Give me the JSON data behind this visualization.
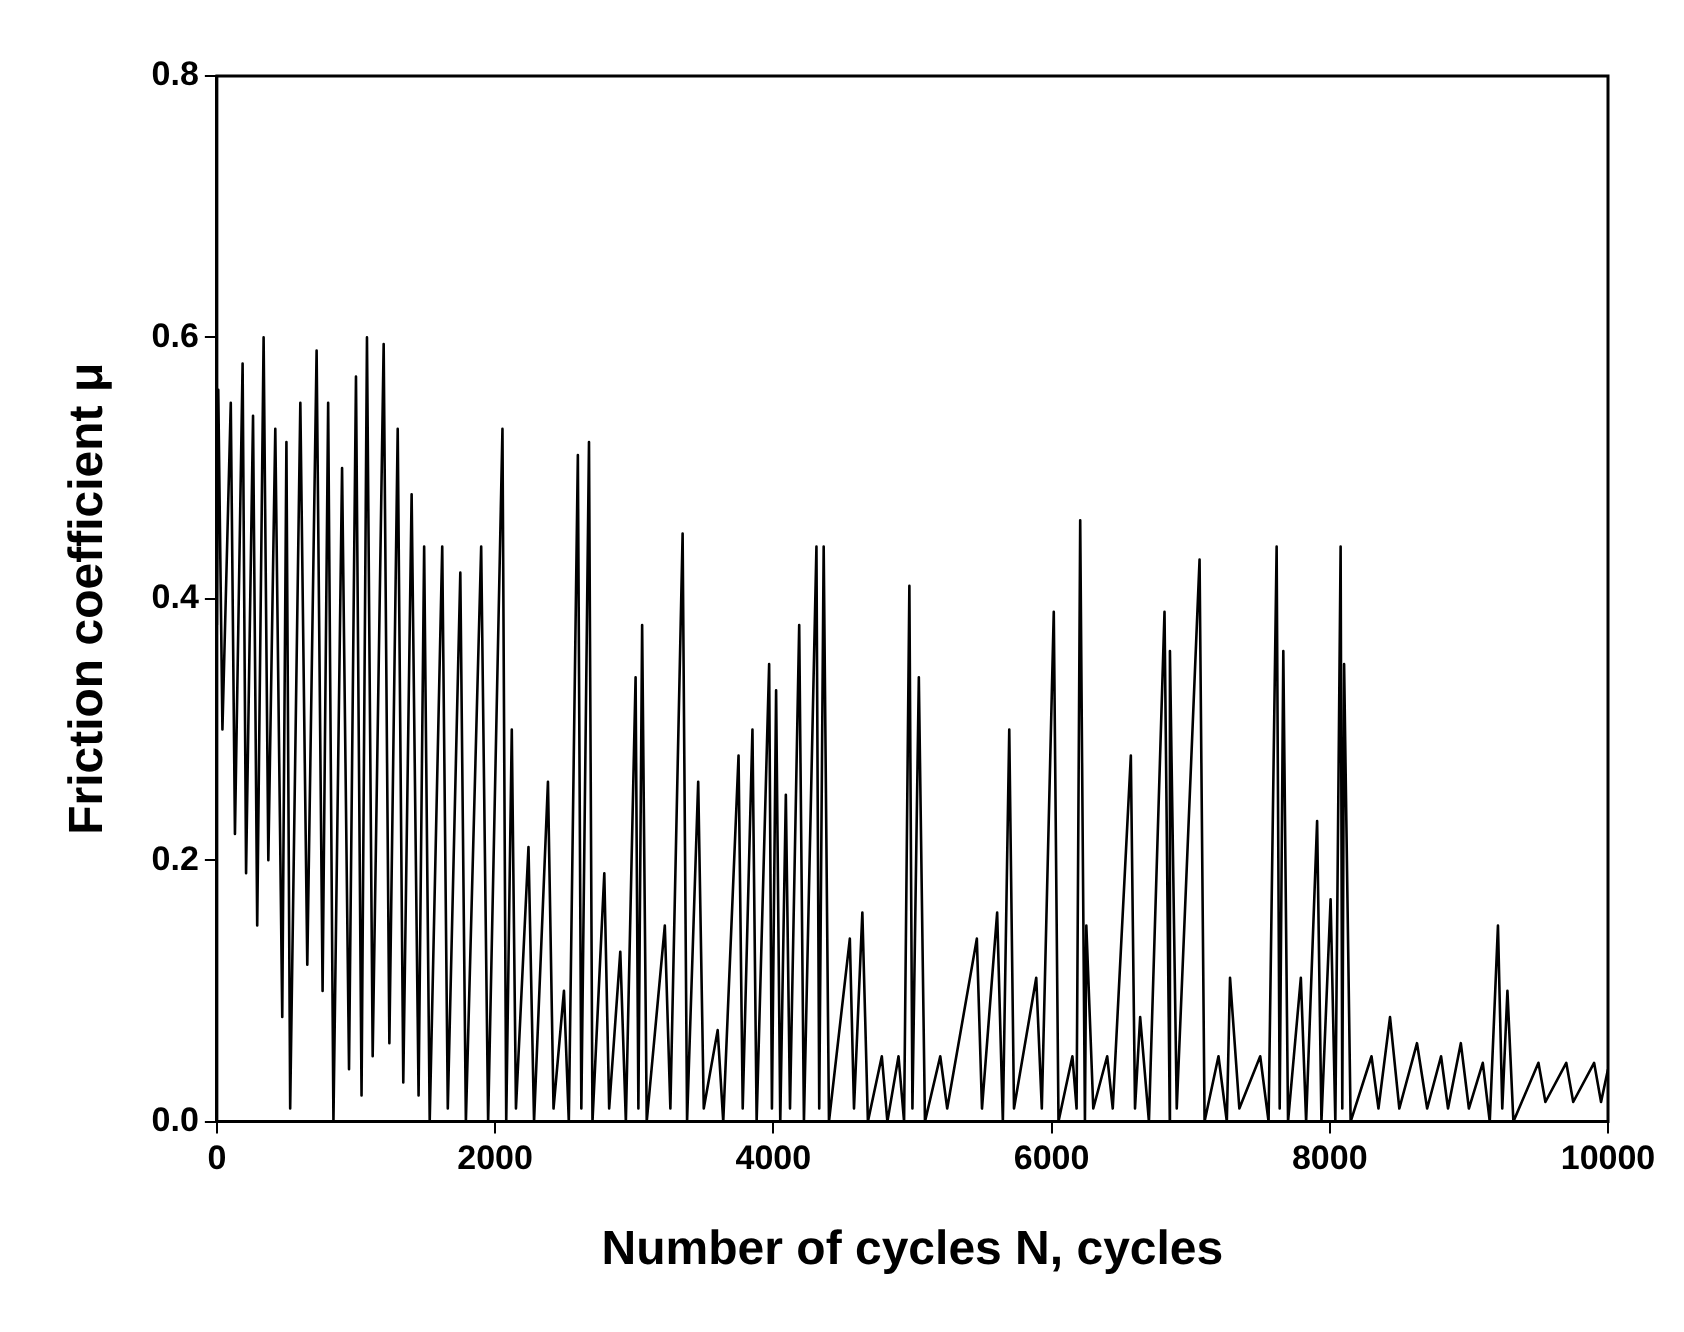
{
  "chart_data": {
    "type": "line",
    "xlabel": "Number of cycles N, cycles",
    "ylabel": "Friction coefficient μ",
    "xlim": [
      0,
      10000
    ],
    "xticks": [
      0,
      2000,
      4000,
      6000,
      8000,
      10000
    ],
    "ylim": [
      0,
      0.8
    ],
    "yticks": [
      {
        "value": 0,
        "label": "0.0"
      },
      {
        "value": 0.2,
        "label": "0.2"
      },
      {
        "value": 0.4,
        "label": "0.4"
      },
      {
        "value": 0.6,
        "label": "0.6"
      },
      {
        "value": 0.8,
        "label": "0.8"
      }
    ],
    "grid": false,
    "legend": false,
    "marker": "none",
    "line_style": "solid",
    "series": [
      {
        "color": "#000000",
        "x": [
          0,
          10,
          40,
          100,
          130,
          185,
          210,
          260,
          290,
          336,
          370,
          420,
          470,
          500,
          527,
          600,
          650,
          717,
          760,
          800,
          838,
          900,
          950,
          1000,
          1040,
          1079,
          1120,
          1199,
          1240,
          1300,
          1340,
          1400,
          1450,
          1490,
          1530,
          1620,
          1660,
          1750,
          1790,
          1900,
          1950,
          2053,
          2080,
          2120,
          2150,
          2240,
          2280,
          2380,
          2420,
          2495,
          2530,
          2595,
          2620,
          2675,
          2700,
          2785,
          2820,
          2900,
          2940,
          3010,
          3030,
          3057,
          3090,
          3220,
          3260,
          3348,
          3380,
          3460,
          3500,
          3600,
          3640,
          3750,
          3780,
          3850,
          3880,
          3970,
          3990,
          4020,
          4050,
          4090,
          4120,
          4186,
          4220,
          4310,
          4330,
          4362,
          4400,
          4550,
          4580,
          4640,
          4680,
          4780,
          4820,
          4900,
          4940,
          4978,
          5000,
          5046,
          5090,
          5200,
          5250,
          5463,
          5500,
          5609,
          5650,
          5696,
          5730,
          5890,
          5930,
          6016,
          6050,
          6150,
          6180,
          6206,
          6240,
          6250,
          6300,
          6400,
          6440,
          6570,
          6600,
          6637,
          6700,
          6812,
          6850,
          6851,
          6900,
          7064,
          7100,
          7200,
          7260,
          7283,
          7350,
          7500,
          7560,
          7618,
          7640,
          7666,
          7700,
          7792,
          7830,
          7909,
          7940,
          8006,
          8040,
          8078,
          8090,
          8103,
          8150,
          8300,
          8350,
          8433,
          8500,
          8627,
          8700,
          8800,
          8850,
          8942,
          9000,
          9100,
          9150,
          9209,
          9240,
          9277,
          9320,
          9500,
          9550,
          9700,
          9750,
          9900,
          9950,
          10000
        ],
        "values": [
          0.38,
          0.56,
          0.3,
          0.55,
          0.22,
          0.58,
          0.19,
          0.54,
          0.15,
          0.6,
          0.2,
          0.53,
          0.08,
          0.52,
          0.01,
          0.55,
          0.12,
          0.59,
          0.1,
          0.55,
          0.0,
          0.5,
          0.04,
          0.57,
          0.02,
          0.6,
          0.05,
          0.595,
          0.06,
          0.53,
          0.03,
          0.48,
          0.02,
          0.44,
          0.0,
          0.44,
          0.01,
          0.42,
          0.0,
          0.44,
          0.0,
          0.53,
          0.0,
          0.3,
          0.01,
          0.21,
          0.0,
          0.26,
          0.01,
          0.1,
          0.0,
          0.51,
          0.01,
          0.52,
          0.0,
          0.19,
          0.01,
          0.13,
          0.0,
          0.34,
          0.01,
          0.38,
          0.0,
          0.15,
          0.01,
          0.45,
          0.0,
          0.26,
          0.01,
          0.07,
          0.0,
          0.28,
          0.01,
          0.3,
          0.0,
          0.35,
          0.01,
          0.33,
          0.0,
          0.25,
          0.01,
          0.38,
          0.0,
          0.44,
          0.01,
          0.44,
          0.0,
          0.14,
          0.01,
          0.16,
          0.0,
          0.05,
          0.0,
          0.05,
          0.0,
          0.41,
          0.01,
          0.34,
          0.0,
          0.05,
          0.01,
          0.14,
          0.01,
          0.16,
          0.0,
          0.3,
          0.01,
          0.11,
          0.01,
          0.39,
          0.0,
          0.05,
          0.01,
          0.46,
          0.0,
          0.15,
          0.01,
          0.05,
          0.01,
          0.28,
          0.01,
          0.08,
          0.0,
          0.39,
          0.0,
          0.36,
          0.01,
          0.43,
          0.0,
          0.05,
          0.0,
          0.11,
          0.01,
          0.05,
          0.0,
          0.44,
          0.01,
          0.36,
          0.0,
          0.11,
          0.0,
          0.23,
          0.0,
          0.17,
          0.0,
          0.44,
          0.01,
          0.35,
          0.0,
          0.05,
          0.01,
          0.08,
          0.01,
          0.06,
          0.01,
          0.05,
          0.01,
          0.06,
          0.01,
          0.045,
          0.0,
          0.15,
          0.01,
          0.1,
          0.0,
          0.045,
          0.015,
          0.045,
          0.015,
          0.045,
          0.015,
          0.04
        ]
      }
    ]
  }
}
